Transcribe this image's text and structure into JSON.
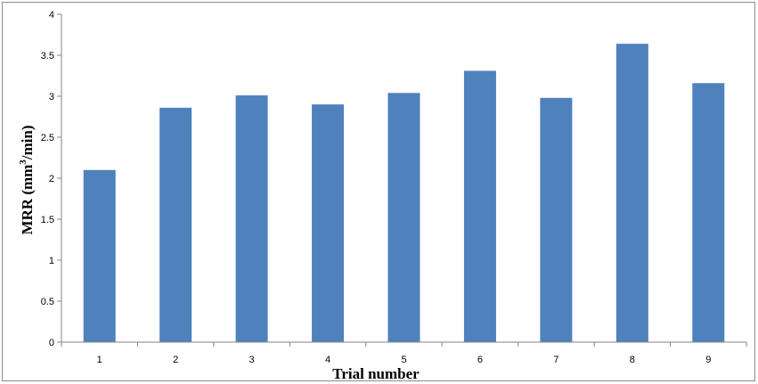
{
  "chart_data": {
    "type": "bar",
    "title": "",
    "xlabel": "Trial number",
    "ylabel": {
      "prefix": "MRR (mm",
      "superscript": "3",
      "suffix": "/min)"
    },
    "categories": [
      "1",
      "2",
      "3",
      "4",
      "5",
      "6",
      "7",
      "8",
      "9"
    ],
    "values": [
      2.1,
      2.86,
      3.01,
      2.9,
      3.04,
      3.31,
      2.98,
      3.64,
      3.16
    ],
    "ylim": [
      0,
      4
    ],
    "yticks": [
      "0",
      "0.5",
      "1",
      "1.5",
      "2",
      "2.5",
      "3",
      "3.5",
      "4"
    ],
    "grid": false,
    "legend": "none",
    "colors": {
      "bar": "#4f81bd",
      "axis": "#868686"
    }
  }
}
